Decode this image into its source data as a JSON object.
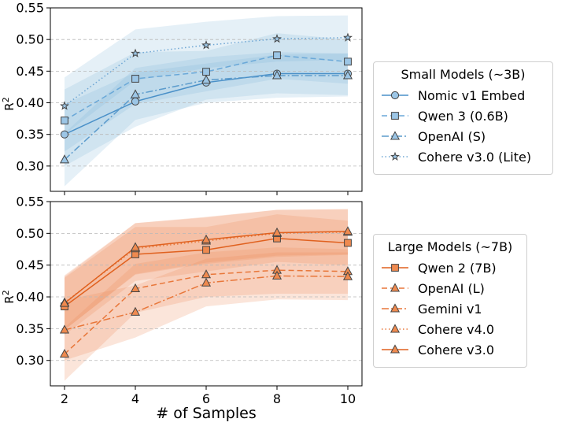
{
  "chart_data": [
    {
      "type": "line",
      "panel": "top",
      "title": "",
      "xlabel": "",
      "ylabel": "R^2",
      "ylabel_parts": {
        "base": "R",
        "sup": "2"
      },
      "x": [
        2,
        4,
        6,
        8,
        10
      ],
      "xlim": [
        1.6,
        10.4
      ],
      "ylim": [
        0.26,
        0.55
      ],
      "yticks": [
        0.3,
        0.35,
        0.4,
        0.45,
        0.5,
        0.55
      ],
      "ytick_labels": [
        "0.30",
        "0.35",
        "0.40",
        "0.45",
        "0.50",
        "0.55"
      ],
      "grid": "horizontal-dashed",
      "legend": {
        "title": "Small Models (~3B)",
        "placement": "right"
      },
      "series": [
        {
          "name": "Nomic v1 Embed",
          "values": [
            0.35,
            0.402,
            0.432,
            0.446,
            0.446
          ],
          "band_low": [
            0.3,
            0.362,
            0.405,
            0.415,
            0.412
          ],
          "band_high": [
            0.398,
            0.448,
            0.462,
            0.476,
            0.478
          ],
          "color": "#4a90c8",
          "marker": "circle",
          "dash": "solid"
        },
        {
          "name": "Qwen 3 (0.6B)",
          "values": [
            0.372,
            0.438,
            0.449,
            0.475,
            0.465
          ],
          "band_low": [
            0.323,
            0.398,
            0.418,
            0.438,
            0.43
          ],
          "band_high": [
            0.421,
            0.48,
            0.482,
            0.51,
            0.5
          ],
          "color": "#6aa8d8",
          "marker": "square",
          "dash": "dashed"
        },
        {
          "name": "OpenAI (S)",
          "values": [
            0.31,
            0.413,
            0.436,
            0.443,
            0.443
          ],
          "band_low": [
            0.268,
            0.373,
            0.4,
            0.408,
            0.41
          ],
          "band_high": [
            0.352,
            0.455,
            0.472,
            0.48,
            0.478
          ],
          "color": "#5b9bcc",
          "marker": "triangle",
          "dash": "dashdot"
        },
        {
          "name": "Cohere v3.0 (Lite)",
          "values": [
            0.395,
            0.478,
            0.491,
            0.501,
            0.503
          ],
          "band_low": [
            0.35,
            0.435,
            0.455,
            0.465,
            0.468
          ],
          "band_high": [
            0.44,
            0.516,
            0.528,
            0.537,
            0.538
          ],
          "color": "#6ea6d4",
          "marker": "star",
          "dash": "dotted"
        }
      ]
    },
    {
      "type": "line",
      "panel": "bottom",
      "title": "",
      "xlabel": "# of Samples",
      "ylabel": "R^2",
      "ylabel_parts": {
        "base": "R",
        "sup": "2"
      },
      "x": [
        2,
        4,
        6,
        8,
        10
      ],
      "xlim": [
        1.6,
        10.4
      ],
      "ylim": [
        0.26,
        0.55
      ],
      "xticks": [
        2,
        4,
        6,
        8,
        10
      ],
      "xtick_labels": [
        "2",
        "4",
        "6",
        "8",
        "10"
      ],
      "yticks": [
        0.3,
        0.35,
        0.4,
        0.45,
        0.5,
        0.55
      ],
      "ytick_labels": [
        "0.30",
        "0.35",
        "0.40",
        "0.45",
        "0.50",
        "0.55"
      ],
      "grid": "horizontal-dashed",
      "legend": {
        "title": "Large Models (~7B)",
        "placement": "right"
      },
      "series": [
        {
          "name": "Qwen 2 (7B)",
          "values": [
            0.385,
            0.467,
            0.474,
            0.492,
            0.485
          ],
          "band_low": [
            0.34,
            0.425,
            0.44,
            0.455,
            0.45
          ],
          "band_high": [
            0.43,
            0.51,
            0.51,
            0.53,
            0.52
          ],
          "color": "#e0611f",
          "marker": "square",
          "dash": "solid"
        },
        {
          "name": "OpenAI (L)",
          "values": [
            0.31,
            0.413,
            0.435,
            0.442,
            0.44
          ],
          "band_low": [
            0.268,
            0.375,
            0.4,
            0.405,
            0.405
          ],
          "band_high": [
            0.352,
            0.452,
            0.47,
            0.478,
            0.475
          ],
          "color": "#e8773a",
          "marker": "triangle",
          "dash": "dashed"
        },
        {
          "name": "Gemini v1",
          "values": [
            0.348,
            0.376,
            0.422,
            0.433,
            0.432
          ],
          "band_low": [
            0.3,
            0.336,
            0.385,
            0.396,
            0.395
          ],
          "band_high": [
            0.395,
            0.418,
            0.46,
            0.47,
            0.47
          ],
          "color": "#e8773a",
          "marker": "triangle",
          "dash": "dashdot"
        },
        {
          "name": "Cohere v4.0",
          "values": [
            0.391,
            0.476,
            0.488,
            0.5,
            0.502
          ],
          "band_low": [
            0.348,
            0.435,
            0.452,
            0.463,
            0.466
          ],
          "band_high": [
            0.434,
            0.516,
            0.525,
            0.537,
            0.538
          ],
          "color": "#e8773a",
          "marker": "triangle",
          "dash": "dotted"
        },
        {
          "name": "Cohere v3.0",
          "values": [
            0.39,
            0.478,
            0.49,
            0.501,
            0.503
          ],
          "band_low": [
            0.348,
            0.436,
            0.454,
            0.465,
            0.467
          ],
          "band_high": [
            0.432,
            0.516,
            0.526,
            0.537,
            0.538
          ],
          "color": "#e0611f",
          "marker": "triangle",
          "dash": "solid"
        }
      ]
    }
  ],
  "colors": {
    "small_band": "#7fb3d9",
    "small_marker_fill": "#9cc6e6",
    "large_band": "#ec8a55",
    "large_marker_fill": "#ef8a4f",
    "marker_edge": "#444444",
    "grid": "#b8b8b8"
  }
}
